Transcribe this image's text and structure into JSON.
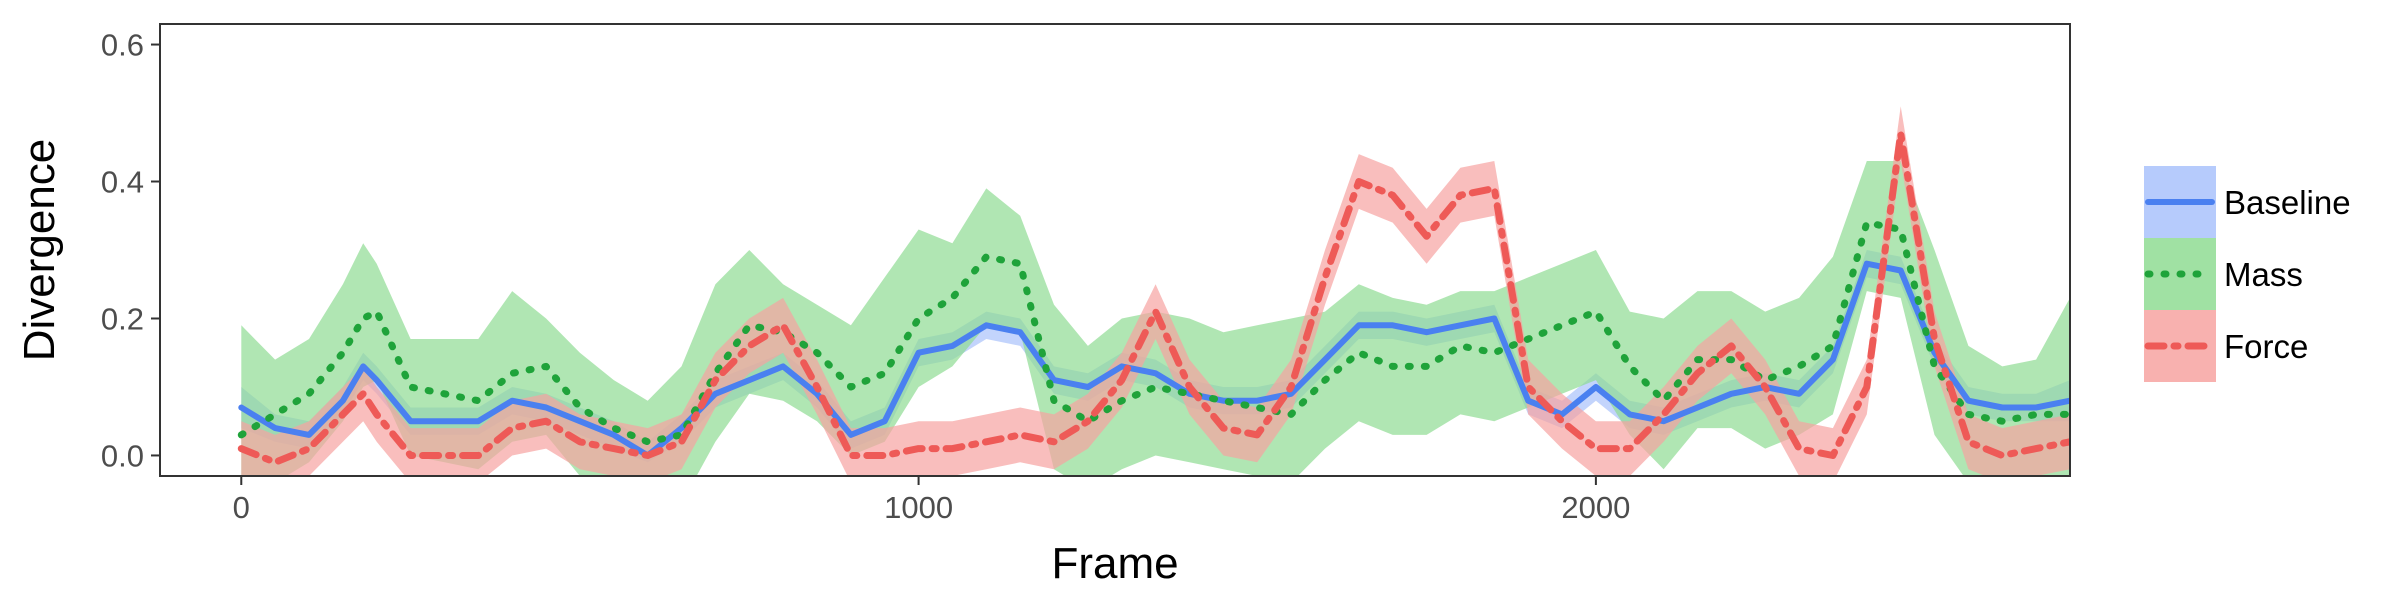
{
  "chart_data": {
    "type": "line",
    "xlabel": "Frame",
    "ylabel": "Divergence",
    "xlim": [
      -120,
      2700
    ],
    "ylim": [
      -0.03,
      0.63
    ],
    "xticks": [
      0,
      1000,
      2000
    ],
    "xtick_labels": [
      "0",
      "1000",
      "2000"
    ],
    "yticks": [
      0.0,
      0.2,
      0.4,
      0.6
    ],
    "ytick_labels": [
      "0.0",
      "0.2",
      "0.4",
      "0.6"
    ],
    "grid": false,
    "legend_position": "right",
    "x": [
      0,
      50,
      100,
      150,
      180,
      200,
      250,
      300,
      350,
      400,
      450,
      500,
      550,
      600,
      650,
      700,
      750,
      800,
      850,
      900,
      950,
      1000,
      1050,
      1100,
      1150,
      1200,
      1250,
      1300,
      1350,
      1400,
      1450,
      1500,
      1550,
      1600,
      1650,
      1700,
      1750,
      1800,
      1850,
      1900,
      1950,
      2000,
      2050,
      2100,
      2150,
      2200,
      2250,
      2300,
      2350,
      2400,
      2450,
      2500,
      2550,
      2600,
      2650,
      2700
    ],
    "series": [
      {
        "name": "Baseline",
        "color": "#4a80f0",
        "band_color": "#a9c2fb",
        "dash": "solid",
        "values": [
          0.07,
          0.04,
          0.03,
          0.08,
          0.13,
          0.11,
          0.05,
          0.05,
          0.05,
          0.08,
          0.07,
          0.05,
          0.03,
          0.0,
          0.04,
          0.09,
          0.11,
          0.13,
          0.09,
          0.03,
          0.05,
          0.15,
          0.16,
          0.19,
          0.18,
          0.11,
          0.1,
          0.13,
          0.12,
          0.09,
          0.08,
          0.08,
          0.09,
          0.14,
          0.19,
          0.19,
          0.18,
          0.19,
          0.2,
          0.08,
          0.06,
          0.1,
          0.06,
          0.05,
          0.07,
          0.09,
          0.1,
          0.09,
          0.14,
          0.28,
          0.27,
          0.15,
          0.08,
          0.07,
          0.07,
          0.08
        ],
        "lower": [
          0.04,
          0.02,
          0.01,
          0.06,
          0.11,
          0.09,
          0.03,
          0.03,
          0.03,
          0.06,
          0.05,
          0.03,
          0.01,
          -0.01,
          0.02,
          0.07,
          0.09,
          0.11,
          0.07,
          0.01,
          0.03,
          0.13,
          0.14,
          0.17,
          0.16,
          0.09,
          0.08,
          0.11,
          0.1,
          0.07,
          0.06,
          0.06,
          0.07,
          0.12,
          0.17,
          0.17,
          0.16,
          0.17,
          0.18,
          0.06,
          0.04,
          0.08,
          0.04,
          0.03,
          0.05,
          0.07,
          0.08,
          0.07,
          0.12,
          0.26,
          0.25,
          0.13,
          0.06,
          0.05,
          0.05,
          0.05
        ],
        "upper": [
          0.1,
          0.06,
          0.05,
          0.1,
          0.15,
          0.13,
          0.07,
          0.07,
          0.07,
          0.1,
          0.09,
          0.07,
          0.05,
          0.02,
          0.06,
          0.11,
          0.13,
          0.15,
          0.11,
          0.05,
          0.07,
          0.17,
          0.18,
          0.21,
          0.2,
          0.13,
          0.12,
          0.15,
          0.14,
          0.11,
          0.1,
          0.1,
          0.11,
          0.16,
          0.21,
          0.21,
          0.2,
          0.21,
          0.22,
          0.1,
          0.08,
          0.12,
          0.08,
          0.07,
          0.09,
          0.11,
          0.12,
          0.11,
          0.16,
          0.3,
          0.29,
          0.17,
          0.1,
          0.09,
          0.09,
          0.11
        ]
      },
      {
        "name": "Mass",
        "color": "#1fa33a",
        "band_color": "#8fdc93",
        "dash": "dotted",
        "values": [
          0.03,
          0.06,
          0.09,
          0.15,
          0.2,
          0.21,
          0.1,
          0.09,
          0.08,
          0.12,
          0.13,
          0.07,
          0.04,
          0.02,
          0.03,
          0.12,
          0.19,
          0.18,
          0.15,
          0.1,
          0.12,
          0.2,
          0.23,
          0.29,
          0.28,
          0.08,
          0.05,
          0.08,
          0.1,
          0.09,
          0.08,
          0.07,
          0.06,
          0.11,
          0.15,
          0.13,
          0.13,
          0.16,
          0.15,
          0.17,
          0.19,
          0.21,
          0.13,
          0.08,
          0.14,
          0.14,
          0.11,
          0.13,
          0.16,
          0.34,
          0.33,
          0.13,
          0.06,
          0.05,
          0.06,
          0.06
        ],
        "lower": [
          -0.07,
          -0.04,
          -0.01,
          0.05,
          0.1,
          0.11,
          0.0,
          -0.01,
          -0.02,
          0.02,
          0.03,
          -0.03,
          -0.06,
          -0.08,
          -0.07,
          0.02,
          0.09,
          0.08,
          0.05,
          0.0,
          0.02,
          0.1,
          0.13,
          0.19,
          0.18,
          -0.02,
          -0.05,
          -0.02,
          0.0,
          -0.01,
          -0.02,
          -0.03,
          -0.04,
          0.01,
          0.05,
          0.03,
          0.03,
          0.06,
          0.05,
          0.07,
          0.09,
          0.11,
          0.03,
          -0.02,
          0.04,
          0.04,
          0.01,
          0.03,
          0.06,
          0.24,
          0.23,
          0.03,
          -0.04,
          -0.05,
          -0.04,
          -0.04
        ],
        "upper": [
          0.19,
          0.14,
          0.17,
          0.25,
          0.31,
          0.28,
          0.17,
          0.17,
          0.17,
          0.24,
          0.2,
          0.15,
          0.11,
          0.08,
          0.13,
          0.25,
          0.3,
          0.25,
          0.22,
          0.19,
          0.26,
          0.33,
          0.31,
          0.39,
          0.35,
          0.22,
          0.16,
          0.2,
          0.21,
          0.2,
          0.18,
          0.19,
          0.2,
          0.21,
          0.25,
          0.23,
          0.22,
          0.24,
          0.24,
          0.26,
          0.28,
          0.3,
          0.21,
          0.2,
          0.24,
          0.24,
          0.21,
          0.23,
          0.29,
          0.43,
          0.43,
          0.3,
          0.16,
          0.13,
          0.14,
          0.23
        ]
      },
      {
        "name": "Force",
        "color": "#ee5a57",
        "band_color": "#f7a3a1",
        "dash": "dashdot",
        "values": [
          0.01,
          -0.01,
          0.01,
          0.06,
          0.09,
          0.06,
          0.0,
          0.0,
          0.0,
          0.04,
          0.05,
          0.02,
          0.01,
          0.0,
          0.02,
          0.11,
          0.16,
          0.19,
          0.1,
          0.0,
          0.0,
          0.01,
          0.01,
          0.02,
          0.03,
          0.02,
          0.05,
          0.11,
          0.21,
          0.1,
          0.04,
          0.03,
          0.1,
          0.26,
          0.4,
          0.38,
          0.32,
          0.38,
          0.39,
          0.1,
          0.05,
          0.01,
          0.01,
          0.06,
          0.12,
          0.16,
          0.1,
          0.01,
          0.0,
          0.1,
          0.47,
          0.17,
          0.02,
          0.0,
          0.01,
          0.02
        ],
        "lower": [
          -0.03,
          -0.05,
          -0.03,
          0.02,
          0.05,
          0.02,
          -0.04,
          -0.04,
          -0.04,
          0.0,
          0.01,
          -0.02,
          -0.03,
          -0.04,
          -0.02,
          0.07,
          0.12,
          0.15,
          0.06,
          -0.04,
          -0.04,
          -0.03,
          -0.03,
          -0.02,
          -0.01,
          -0.02,
          0.01,
          0.07,
          0.17,
          0.06,
          0.0,
          -0.01,
          0.06,
          0.22,
          0.36,
          0.34,
          0.28,
          0.34,
          0.35,
          0.06,
          0.01,
          -0.03,
          -0.03,
          0.02,
          0.08,
          0.12,
          0.06,
          -0.03,
          -0.04,
          0.06,
          0.43,
          0.13,
          -0.02,
          -0.04,
          -0.03,
          -0.02
        ],
        "upper": [
          0.05,
          0.03,
          0.05,
          0.1,
          0.13,
          0.1,
          0.04,
          0.04,
          0.04,
          0.08,
          0.09,
          0.06,
          0.05,
          0.04,
          0.06,
          0.15,
          0.2,
          0.23,
          0.14,
          0.04,
          0.04,
          0.05,
          0.05,
          0.06,
          0.07,
          0.06,
          0.09,
          0.15,
          0.25,
          0.14,
          0.08,
          0.07,
          0.14,
          0.3,
          0.44,
          0.42,
          0.36,
          0.42,
          0.43,
          0.14,
          0.09,
          0.05,
          0.05,
          0.1,
          0.16,
          0.2,
          0.14,
          0.05,
          0.04,
          0.14,
          0.51,
          0.21,
          0.06,
          0.04,
          0.05,
          0.06
        ]
      }
    ]
  }
}
